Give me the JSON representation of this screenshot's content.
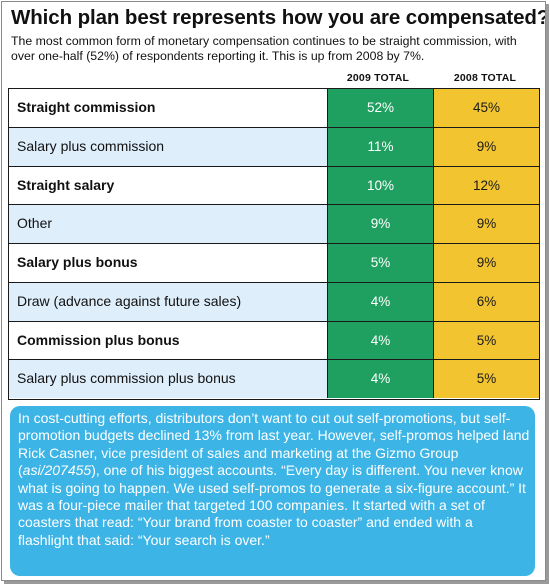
{
  "title": "Which plan best represents how you are compensated?",
  "subtitle": "The most common form of monetary compensation continues to be straight commission, with over one-half (52%) of respondents reporting it. This is up from 2008 by 7%.",
  "chart_data": {
    "type": "table",
    "columns": [
      "2009 TOTAL",
      "2008 TOTAL"
    ],
    "rows": [
      {
        "label": "Straight commission",
        "y2009": "52%",
        "y2008": "45%"
      },
      {
        "label": "Salary plus commission",
        "y2009": "11%",
        "y2008": "9%"
      },
      {
        "label": "Straight salary",
        "y2009": "10%",
        "y2008": "12%"
      },
      {
        "label": "Other",
        "y2009": "9%",
        "y2008": "9%"
      },
      {
        "label": "Salary plus bonus",
        "y2009": "5%",
        "y2008": "9%"
      },
      {
        "label": "Draw (advance against future sales)",
        "y2009": "4%",
        "y2008": "6%"
      },
      {
        "label": "Commission plus bonus",
        "y2009": "4%",
        "y2008": "5%"
      },
      {
        "label": "Salary plus commission plus bonus",
        "y2009": "4%",
        "y2008": "5%"
      }
    ],
    "colors": {
      "col_2009": "#20a060",
      "col_2008": "#f2c530",
      "row_alt": "#deeefb"
    }
  },
  "callout": {
    "text_before": "In cost-cutting efforts, distributors don’t want to cut out self-promotions, but self-promotion budgets declined 13% from last year. However, self-promos helped land Rick Casner, vice president of sales and marketing at the Gizmo Group (",
    "text_italic": "asi/207455",
    "text_after": "), one of his biggest accounts. “Every day is different. You never know what is going to happen. We used self-promos to generate a six-figure account.” It was a four-piece mailer that targeted 100 companies. It started with a set of coasters that read: “Your brand from coaster to coaster” and ended with a flashlight that said: “Your search is over.”",
    "color": "#3cb4e6"
  }
}
